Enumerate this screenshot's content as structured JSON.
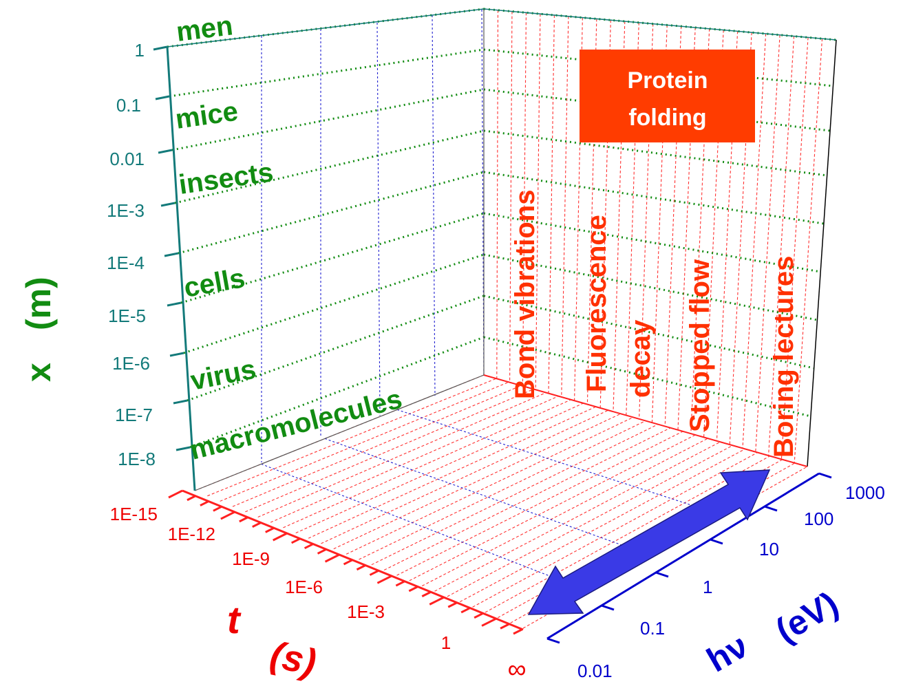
{
  "axes": {
    "x": {
      "title": "x (m)",
      "title_parts": [
        "x",
        "(m)"
      ],
      "ticks": [
        "1",
        "0.1",
        "0.01",
        "1E-3",
        "1E-4",
        "1E-5",
        "1E-6",
        "1E-7",
        "1E-8"
      ]
    },
    "t": {
      "title_parts": [
        "t",
        "(s)"
      ],
      "ticks": [
        "1E-15",
        "1E-12",
        "1E-9",
        "1E-6",
        "1E-3",
        "1",
        "∞"
      ]
    },
    "hv": {
      "title_parts": [
        "hν",
        "(eV)"
      ],
      "ticks": [
        "1000",
        "100",
        "10",
        "1",
        "0.1",
        "0.01"
      ]
    }
  },
  "size_labels": [
    "men",
    "mice",
    "insects",
    "cells",
    "virus",
    "macromolecules"
  ],
  "time_labels": [
    "Bond vibrations",
    "Fluorescence",
    "decay",
    "Stopped flow",
    "Boring lectures"
  ],
  "highlight_box": {
    "line1": "Protein",
    "line2": "folding"
  },
  "colors": {
    "green": "#128c12",
    "teal": "#137a7a",
    "red": "#ff3000",
    "blue": "#0000cc",
    "arrow": "#3a3ae6",
    "box": "#ff3c00"
  }
}
